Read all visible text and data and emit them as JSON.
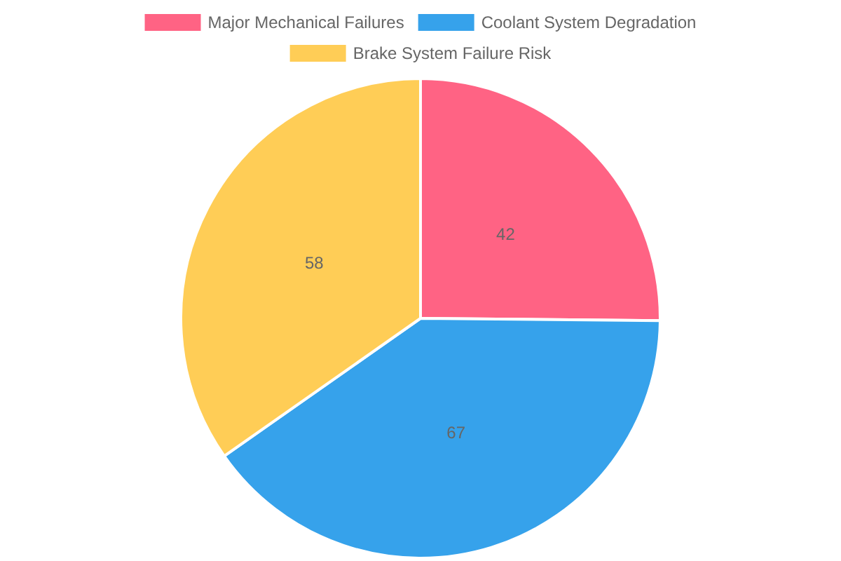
{
  "chart_data": {
    "type": "pie",
    "categories": [
      "Major Mechanical Failures",
      "Coolant System Degradation",
      "Brake System Failure Risk"
    ],
    "values": [
      42,
      67,
      58
    ],
    "colors": [
      "#ff6384",
      "#36a2eb",
      "#ffcd56"
    ],
    "data_labels": true,
    "legend": "top"
  }
}
